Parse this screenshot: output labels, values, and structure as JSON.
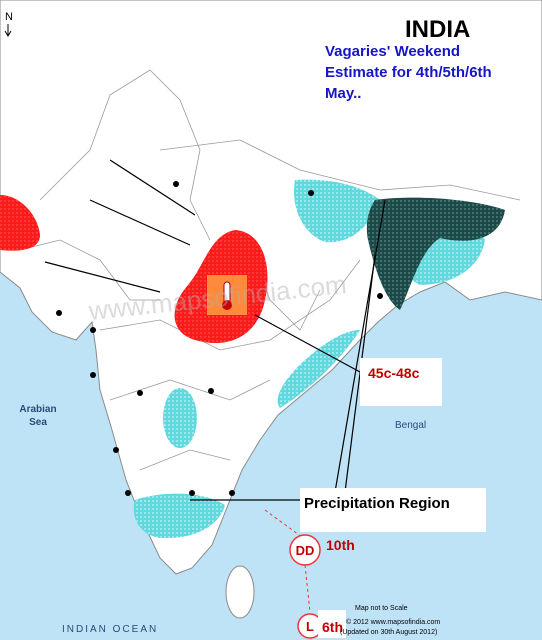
{
  "map": {
    "compass": "N",
    "title": "INDIA",
    "subtitle_lines": [
      "Vagaries'  Weekend",
      "Estimate for 4th/5th/6th",
      "May.."
    ],
    "sea_labels": {
      "arabian": [
        "Arabian",
        "Sea"
      ],
      "bengal": "Bengal",
      "ocean": "INDIAN OCEAN"
    },
    "watermark": "www.mapsofindia.com",
    "temperature_label": "45c-48c",
    "precipitation_label": "Precipitation Region",
    "systems": [
      {
        "symbol": "DD",
        "date": "10th"
      },
      {
        "symbol": "L",
        "date": "6th"
      }
    ],
    "footer": {
      "scale_note": "Map not to Scale",
      "copyright": "© 2012 www.mapsofindia.com",
      "updated": "(Updated on 30th August 2012)"
    }
  }
}
